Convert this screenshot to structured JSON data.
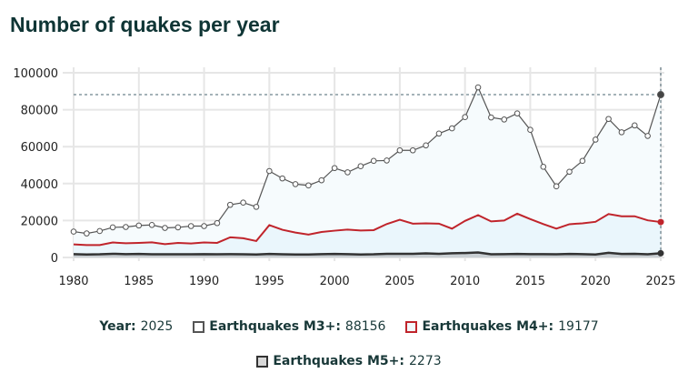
{
  "chart_data": {
    "type": "line",
    "title": "Number of quakes per year",
    "x": [
      1980,
      1981,
      1982,
      1983,
      1984,
      1985,
      1986,
      1987,
      1988,
      1989,
      1990,
      1991,
      1992,
      1993,
      1994,
      1995,
      1996,
      1997,
      1998,
      1999,
      2000,
      2001,
      2002,
      2003,
      2004,
      2005,
      2006,
      2007,
      2008,
      2009,
      2010,
      2011,
      2012,
      2013,
      2014,
      2015,
      2016,
      2017,
      2018,
      2019,
      2020,
      2021,
      2022,
      2023,
      2024,
      2025
    ],
    "xticks": [
      "1980",
      "1985",
      "1990",
      "1995",
      "2000",
      "2005",
      "2010",
      "2015",
      "2020",
      "2025"
    ],
    "yticks": [
      "0",
      "20000",
      "40000",
      "60000",
      "80000",
      "100000"
    ],
    "ylim": [
      0,
      100000
    ],
    "grid": true,
    "legend_position": "bottom",
    "series": [
      {
        "name": "Earthquakes M3+",
        "color": "#555555",
        "values": [
          14000,
          13000,
          14300,
          16300,
          16500,
          17300,
          17600,
          16000,
          16300,
          17000,
          17000,
          18600,
          28500,
          29700,
          27400,
          46800,
          42800,
          39700,
          39000,
          41800,
          48400,
          46100,
          49400,
          52300,
          52500,
          58000,
          58000,
          60700,
          67100,
          69900,
          76000,
          92100,
          75800,
          74700,
          78000,
          69100,
          49100,
          38500,
          46400,
          52300,
          63800,
          75000,
          67800,
          71500,
          65800,
          88156
        ]
      },
      {
        "name": "Earthquakes M4+",
        "color": "#c0242b",
        "values": [
          7100,
          6700,
          6700,
          8100,
          7700,
          7900,
          8200,
          7200,
          7900,
          7600,
          8100,
          7900,
          10900,
          10400,
          8900,
          17500,
          15000,
          13500,
          12400,
          13800,
          14500,
          15100,
          14600,
          14800,
          18100,
          20400,
          18300,
          18500,
          18300,
          15600,
          19800,
          22900,
          19500,
          20000,
          23700,
          20800,
          18100,
          15600,
          18000,
          18500,
          19300,
          23500,
          22300,
          22300,
          20100,
          19177
        ]
      },
      {
        "name": "Earthquakes M5+",
        "color": "#333333",
        "values": [
          1800,
          1600,
          1700,
          2000,
          1800,
          1900,
          1700,
          1700,
          1700,
          1700,
          1800,
          1700,
          1800,
          1700,
          1600,
          1900,
          1700,
          1600,
          1600,
          1800,
          1900,
          1800,
          1600,
          1700,
          2000,
          2000,
          2000,
          2200,
          2000,
          2300,
          2400,
          2700,
          1700,
          1800,
          1900,
          1800,
          1800,
          1700,
          1900,
          1800,
          1600,
          2500,
          1900,
          2000,
          1700,
          2273
        ]
      }
    ],
    "reference_line": 88156
  },
  "legend": {
    "year_label": "Year:",
    "year_value": "2025",
    "m3_label": "Earthquakes M3+:",
    "m3_value": "88156",
    "m4_label": "Earthquakes M4+:",
    "m4_value": "19177",
    "m5_label": "Earthquakes M5+:",
    "m5_value": "2273"
  }
}
